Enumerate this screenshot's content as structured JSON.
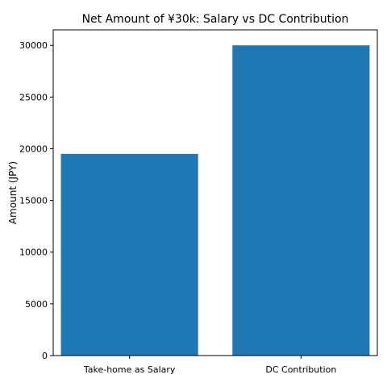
{
  "chart_data": {
    "type": "bar",
    "title": "Net Amount of ¥30k: Salary vs DC Contribution",
    "xlabel": "",
    "ylabel": "Amount (JPY)",
    "categories": [
      "Take-home as Salary",
      "DC Contribution"
    ],
    "values": [
      19500,
      30000
    ],
    "ylim": [
      0,
      31500
    ],
    "yticks": [
      0,
      5000,
      10000,
      15000,
      20000,
      25000,
      30000
    ],
    "ytick_labels": [
      "0",
      "5000",
      "10000",
      "15000",
      "20000",
      "25000",
      "30000"
    ],
    "grid": false,
    "legend": "none",
    "bar_color": "#1f77b4"
  }
}
